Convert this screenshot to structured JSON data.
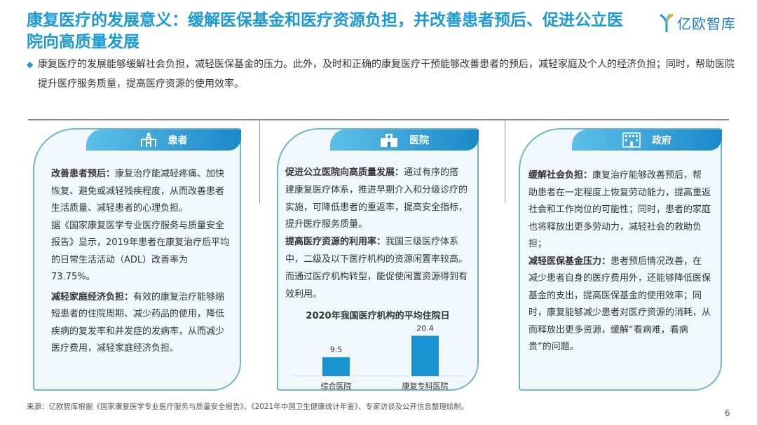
{
  "header": {
    "title": "康复医疗的发展意义：缓解医保基金和医疗资源负担，并改善患者预后、促进公立医院向高质量发展",
    "logo_text": "亿欧智库",
    "brand_color": "#1a9ad6"
  },
  "intro": "康复医疗的发展能够缓解社会负担，减轻医保基金的压力。此外，及时和正确的康复医疗干预能够改善患者的预后，减轻家庭及个人的经济负担；同时，帮助医院提升医疗服务质量，提高医疗资源的使用效率。",
  "cards": [
    {
      "title": "患者",
      "icon": "patient-walker-icon",
      "sections": [
        {
          "heading": "改善患者预后：",
          "text": "康复治疗能减轻疼痛、加快恢复、避免或减轻残疾程度，从而改善患者生活质量、减轻患者的心理负担。"
        },
        {
          "heading": "",
          "text": "据《国家康复医学专业医疗服务与质量安全报告》显示，2019年患者在康复治疗后平均的日常生活活动（ADL）改善率为73.75%。"
        },
        {
          "heading": "减轻家庭经济负担：",
          "text": "有效的康复治疗能够缩短患者的住院周期、减少药品的使用，降低疾病的复发率和并发症的发病率，从而减少医疗费用，减轻家庭经济负担。"
        }
      ]
    },
    {
      "title": "医院",
      "icon": "hospital-icon",
      "sections": [
        {
          "heading": "促进公立医院向高质量发展：",
          "text": "通过有序的搭建康复医疗体系，推进早期介入和分级诊疗的实施，可降低患者的重返率，提高安全指标，提升医疗服务质量。"
        },
        {
          "heading": "提高医疗资源的利用率：",
          "text": "我国三级医疗体系中，二级及以下医疗机构的资源闲置率较高。而通过医疗机构转型，能促使闲置资源得到有效利用。"
        }
      ]
    },
    {
      "title": "政府",
      "icon": "government-building-icon",
      "sections": [
        {
          "heading": "缓解社会负担：",
          "text": "康复治疗能够改善预后，帮助患者在一定程度上恢复劳动能力，提高重返社会和工作岗位的可能性；同时，患者的家庭也将释放出更多劳动力，减轻社会的救助负担；"
        },
        {
          "heading": "减轻医保基金压力：",
          "text": "患者预后情况改善，在减少患者自身的医疗费用外，还能够降低医保基金的支出，提高医保基金的使用效率；同时，康复能够减少患者对医疗资源的消耗，从而释放出更多资源，缓解“看病难，看病贵”的问题。"
        }
      ]
    }
  ],
  "chart_data": {
    "type": "bar",
    "title": "2020年我国医疗机构的平均住院日",
    "categories": [
      "综合医院",
      "康复专科医院"
    ],
    "values": [
      9.5,
      20.4
    ],
    "value_labels": [
      "9.5",
      "20.4"
    ],
    "bar_color": "#1a92cf",
    "ylim": [
      0,
      22
    ]
  },
  "footer": "来源：亿欧智库根据《国家康复医学专业医疗服务与质量安全报告》、《2021年中国卫生健康统计年鉴》、专家访谈及公开信息整理绘制。",
  "page_number": "6"
}
